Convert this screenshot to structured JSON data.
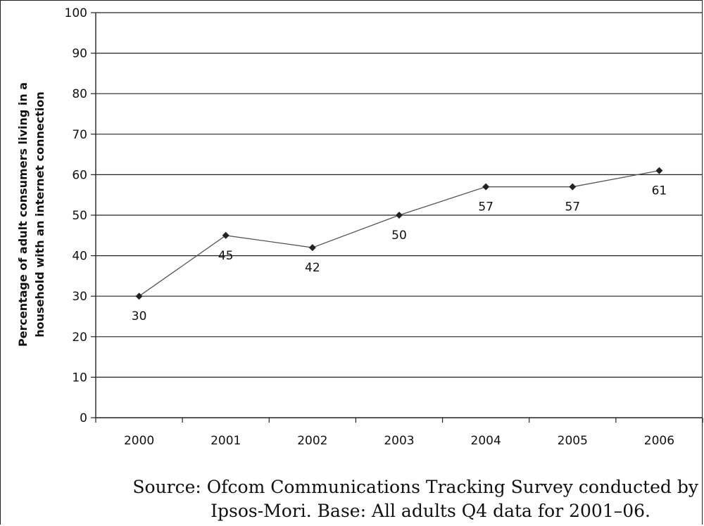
{
  "chart_data": {
    "type": "line",
    "categories": [
      "2000",
      "2001",
      "2002",
      "2003",
      "2004",
      "2005",
      "2006"
    ],
    "values": [
      30,
      45,
      42,
      50,
      57,
      57,
      61
    ],
    "data_labels": [
      "30",
      "45",
      "42",
      "50",
      "57",
      "57",
      "61"
    ],
    "ylabel_lines": [
      "Percentage of adult consumers living in a",
      "household with an internet connection"
    ],
    "ylim": [
      0,
      100
    ],
    "yticks": [
      "0",
      "10",
      "20",
      "30",
      "40",
      "50",
      "60",
      "70",
      "80",
      "90",
      "100"
    ],
    "grid": true,
    "legend": "none",
    "line_color": "#555555",
    "marker_color": "#222222"
  },
  "source_lines": [
    "Source: Ofcom Communications Tracking Survey conducted by",
    "Ipsos-Mori. Base: All adults Q4 data for 2001–06."
  ]
}
